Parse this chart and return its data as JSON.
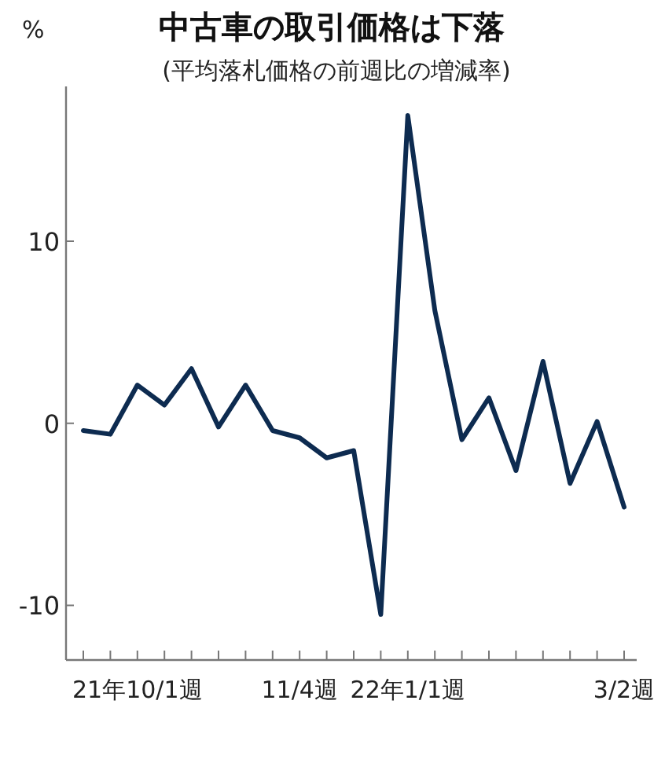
{
  "chart_data": {
    "type": "line",
    "title": "中古車の取引価格は下落",
    "subtitle": "(平均落札価格の前週比の増減率)",
    "ylabel": "%",
    "categories": [
      null,
      null,
      "21年10/1週",
      null,
      null,
      null,
      null,
      null,
      "11/4週",
      null,
      null,
      null,
      "22年1/1週",
      null,
      null,
      null,
      null,
      null,
      null,
      null,
      "3/2週"
    ],
    "series": [
      {
        "color": "#0d2b50",
        "values": [
          -0.4,
          -0.6,
          2.1,
          1.0,
          3.0,
          -0.2,
          2.1,
          -0.4,
          -0.8,
          -1.9,
          -1.5,
          -10.5,
          16.9,
          6.2,
          -0.9,
          1.4,
          -2.6,
          3.4,
          -3.3,
          0.1,
          -4.6
        ]
      }
    ],
    "ylim": [
      -13,
      18.5
    ],
    "yticks": [
      {
        "value": -10,
        "label": "-10"
      },
      0,
      10
    ],
    "grid": false,
    "marker": "none",
    "line_style": "solid"
  }
}
